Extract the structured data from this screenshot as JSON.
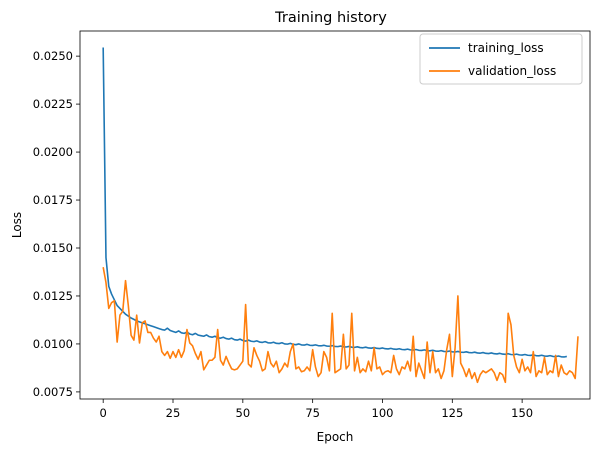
{
  "chart_data": {
    "type": "line",
    "title": "Training history",
    "xlabel": "Epoch",
    "ylabel": "Loss",
    "xlim": [
      -8.3,
      174.3
    ],
    "ylim": [
      0.00713,
      0.02631
    ],
    "x_ticks": [
      0,
      25,
      50,
      75,
      100,
      125,
      150
    ],
    "x_tick_labels": [
      "0",
      "25",
      "50",
      "75",
      "100",
      "125",
      "150"
    ],
    "y_ticks": [
      0.0075,
      0.01,
      0.0125,
      0.015,
      0.0175,
      0.02,
      0.0225,
      0.025
    ],
    "y_tick_labels": [
      "0.0075",
      "0.0100",
      "0.0125",
      "0.0150",
      "0.0175",
      "0.0200",
      "0.0225",
      "0.0250"
    ],
    "grid": false,
    "legend_position": "top-right",
    "series": [
      {
        "name": "training_loss",
        "color": "#1f77b4",
        "values": [
          0.02545,
          0.0145,
          0.013,
          0.0126,
          0.0123,
          0.012,
          0.01185,
          0.0117,
          0.01155,
          0.01145,
          0.01135,
          0.01128,
          0.0112,
          0.01115,
          0.0111,
          0.01105,
          0.011,
          0.01095,
          0.0109,
          0.01085,
          0.0108,
          0.01075,
          0.01072,
          0.01082,
          0.0107,
          0.01065,
          0.0106,
          0.01068,
          0.01058,
          0.01055,
          0.01062,
          0.01052,
          0.01048,
          0.01055,
          0.01046,
          0.01043,
          0.0104,
          0.01047,
          0.01038,
          0.01035,
          0.0104,
          0.01032,
          0.0103,
          0.01035,
          0.01028,
          0.01025,
          0.0103,
          0.01022,
          0.0102,
          0.01025,
          0.01018,
          0.01015,
          0.0102,
          0.01014,
          0.01012,
          0.01016,
          0.0101,
          0.01008,
          0.01012,
          0.01006,
          0.01005,
          0.01009,
          0.01003,
          0.01002,
          0.01006,
          0.01,
          0.00999,
          0.01003,
          0.00998,
          0.00996,
          0.01,
          0.00995,
          0.00994,
          0.00998,
          0.00993,
          0.00992,
          0.00995,
          0.00991,
          0.0099,
          0.00993,
          0.00989,
          0.00988,
          0.00991,
          0.00987,
          0.00986,
          0.00989,
          0.00985,
          0.00984,
          0.00987,
          0.00983,
          0.00982,
          0.00985,
          0.00981,
          0.0098,
          0.00983,
          0.00979,
          0.00978,
          0.00981,
          0.00977,
          0.00976,
          0.00979,
          0.00975,
          0.00974,
          0.00977,
          0.00973,
          0.00972,
          0.00975,
          0.00971,
          0.0097,
          0.00973,
          0.00969,
          0.00968,
          0.00971,
          0.00967,
          0.00966,
          0.00969,
          0.00965,
          0.00964,
          0.00967,
          0.00963,
          0.00962,
          0.00965,
          0.00961,
          0.0096,
          0.00963,
          0.00959,
          0.00958,
          0.00961,
          0.00957,
          0.00956,
          0.00959,
          0.00955,
          0.00954,
          0.00957,
          0.00953,
          0.00952,
          0.00955,
          0.00951,
          0.0095,
          0.00953,
          0.00949,
          0.00948,
          0.00951,
          0.00947,
          0.00946,
          0.00949,
          0.00945,
          0.00944,
          0.00947,
          0.00943,
          0.00942,
          0.00945,
          0.00941,
          0.0094,
          0.00943,
          0.00939,
          0.00938,
          0.00941,
          0.00937,
          0.00936,
          0.00939,
          0.00935,
          0.00934,
          0.00937,
          0.00933,
          0.00932,
          0.00935
        ]
      },
      {
        "name": "validation_loss",
        "color": "#ff7f0e",
        "values": [
          0.014,
          0.0132,
          0.01185,
          0.01215,
          0.01225,
          0.0101,
          0.0115,
          0.0117,
          0.0133,
          0.012,
          0.01045,
          0.0102,
          0.0115,
          0.01005,
          0.0111,
          0.0112,
          0.0106,
          0.0106,
          0.0103,
          0.0101,
          0.0104,
          0.0096,
          0.0094,
          0.0096,
          0.00925,
          0.0096,
          0.0093,
          0.0097,
          0.0093,
          0.00965,
          0.01075,
          0.01005,
          0.0099,
          0.0095,
          0.0092,
          0.0096,
          0.00865,
          0.0089,
          0.00915,
          0.00915,
          0.0093,
          0.01075,
          0.00915,
          0.0089,
          0.00935,
          0.009,
          0.0087,
          0.00865,
          0.0087,
          0.0089,
          0.0091,
          0.01205,
          0.00895,
          0.0088,
          0.0098,
          0.0094,
          0.0091,
          0.0086,
          0.0087,
          0.0096,
          0.009,
          0.0088,
          0.0091,
          0.0085,
          0.0087,
          0.009,
          0.0088,
          0.0096,
          0.01,
          0.0087,
          0.0088,
          0.00855,
          0.0086,
          0.0088,
          0.0086,
          0.0097,
          0.0088,
          0.0083,
          0.0085,
          0.0096,
          0.0093,
          0.0086,
          0.0116,
          0.0085,
          0.0086,
          0.0087,
          0.0105,
          0.0087,
          0.0089,
          0.0116,
          0.0086,
          0.0093,
          0.0085,
          0.0087,
          0.00855,
          0.0091,
          0.0086,
          0.0098,
          0.0087,
          0.0088,
          0.0084,
          0.00855,
          0.0086,
          0.0085,
          0.0094,
          0.0087,
          0.0084,
          0.0088,
          0.0087,
          0.0091,
          0.0086,
          0.0104,
          0.0083,
          0.009,
          0.0086,
          0.0082,
          0.0101,
          0.0085,
          0.0096,
          0.0085,
          0.0087,
          0.0082,
          0.0086,
          0.0097,
          0.0105,
          0.0083,
          0.0098,
          0.0125,
          0.009,
          0.0087,
          0.0083,
          0.0087,
          0.0082,
          0.0085,
          0.008,
          0.0084,
          0.0086,
          0.0085,
          0.0086,
          0.0087,
          0.0085,
          0.0081,
          0.0085,
          0.0084,
          0.008,
          0.0116,
          0.011,
          0.0094,
          0.0088,
          0.0085,
          0.0092,
          0.0086,
          0.0088,
          0.0085,
          0.0096,
          0.0083,
          0.0086,
          0.0085,
          0.0093,
          0.0084,
          0.0086,
          0.0085,
          0.0094,
          0.0083,
          0.0089,
          0.0085,
          0.0084,
          0.0086,
          0.0085,
          0.0082,
          0.0104
        ]
      }
    ]
  }
}
